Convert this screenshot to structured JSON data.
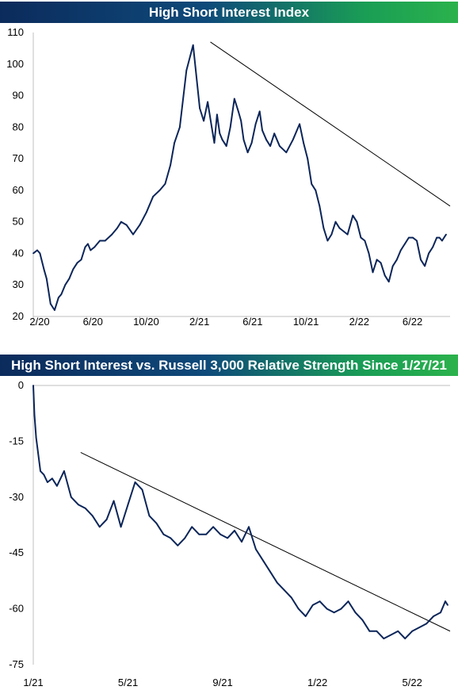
{
  "chart_data": [
    {
      "type": "line",
      "title": "High Short Interest Index",
      "xlabel": "",
      "ylabel": "",
      "ylim": [
        20,
        110
      ],
      "yticks": [
        "110",
        "100",
        "90",
        "80",
        "70",
        "60",
        "50",
        "40",
        "30",
        "20"
      ],
      "xticks": [
        "2/20",
        "6/20",
        "10/20",
        "2/21",
        "6/21",
        "10/21",
        "2/22",
        "6/22"
      ],
      "x_months_range": [
        0,
        31.3
      ],
      "line_color": "#0b2559",
      "series": [
        {
          "x": [
            0,
            0.3,
            0.5,
            0.8,
            1.0,
            1.3,
            1.6,
            1.9,
            2.1,
            2.4,
            2.7,
            3.0,
            3.3,
            3.6,
            3.9,
            4.1,
            4.3,
            4.6,
            5.0,
            5.4,
            5.9,
            6.3,
            6.6,
            7.0,
            7.5,
            8.0,
            8.5,
            9.0,
            9.5,
            9.9,
            10.3,
            10.6,
            11.0,
            11.5,
            12.0,
            12.5,
            12.8,
            13.1,
            13.4,
            13.6,
            13.8,
            14.0,
            14.2,
            14.5,
            14.8,
            15.1,
            15.4,
            15.6,
            15.8,
            16.1,
            16.4,
            16.7,
            17.0,
            17.2,
            17.5,
            17.8,
            18.1,
            18.5,
            19.0,
            19.5,
            20.0,
            20.3,
            20.6,
            20.9,
            21.2,
            21.5,
            21.8,
            22.1,
            22.4,
            22.7,
            23.0,
            23.3,
            23.6,
            24.0,
            24.3,
            24.6,
            24.9,
            25.2,
            25.5,
            25.8,
            26.1,
            26.4,
            26.7,
            27.0,
            27.3,
            27.6,
            27.9,
            28.2,
            28.5,
            28.8,
            29.1,
            29.4,
            29.7,
            30.0,
            30.3,
            30.5,
            30.7,
            31.0
          ],
          "values": [
            40,
            41,
            40,
            35,
            32,
            24,
            22,
            26,
            27,
            30,
            32,
            35,
            37,
            38,
            42,
            43,
            41,
            42,
            44,
            44,
            46,
            48,
            50,
            49,
            46,
            49,
            53,
            58,
            60,
            62,
            68,
            75,
            80,
            98,
            106,
            86,
            82,
            88,
            80,
            75,
            84,
            78,
            76,
            74,
            80,
            89,
            85,
            82,
            76,
            72,
            75,
            81,
            85,
            79,
            76,
            74,
            78,
            74,
            72,
            76,
            81,
            75,
            70,
            62,
            60,
            55,
            48,
            44,
            46,
            50,
            48,
            47,
            46,
            52,
            50,
            45,
            44,
            40,
            34,
            38,
            37,
            33,
            31,
            36,
            38,
            41,
            43,
            45,
            45,
            44,
            38,
            36,
            40,
            42,
            45,
            45,
            44,
            46
          ]
        }
      ],
      "trendline": {
        "x": [
          13.3,
          31.3
        ],
        "values": [
          107,
          55
        ]
      }
    },
    {
      "type": "line",
      "title": "High Short Interest vs. Russell 3,000 Relative Strength Since 1/27/21",
      "xlabel": "",
      "ylabel": "",
      "ylim": [
        -75,
        0
      ],
      "yticks": [
        "0",
        "-15",
        "-30",
        "-45",
        "-60",
        "-75"
      ],
      "xticks": [
        "1/21",
        "5/21",
        "9/21",
        "1/22",
        "5/22"
      ],
      "x_months_range": [
        0,
        17.6
      ],
      "line_color": "#0b2559",
      "series": [
        {
          "x": [
            0,
            0.05,
            0.12,
            0.2,
            0.3,
            0.45,
            0.6,
            0.8,
            1.0,
            1.3,
            1.6,
            1.9,
            2.2,
            2.5,
            2.8,
            3.1,
            3.4,
            3.7,
            4.0,
            4.3,
            4.6,
            4.9,
            5.2,
            5.5,
            5.8,
            6.1,
            6.4,
            6.7,
            7.0,
            7.3,
            7.6,
            7.9,
            8.2,
            8.5,
            8.8,
            9.1,
            9.4,
            9.7,
            10.0,
            10.3,
            10.6,
            10.9,
            11.2,
            11.5,
            11.8,
            12.1,
            12.4,
            12.7,
            13.0,
            13.3,
            13.6,
            13.9,
            14.2,
            14.5,
            14.8,
            15.1,
            15.4,
            15.7,
            16.0,
            16.3,
            16.6,
            16.9,
            17.2,
            17.4,
            17.5
          ],
          "values": [
            0,
            -8,
            -14,
            -18,
            -23,
            -24,
            -26,
            -25,
            -27,
            -23,
            -30,
            -32,
            -33,
            -35,
            -38,
            -36,
            -31,
            -38,
            -32,
            -26,
            -28,
            -35,
            -37,
            -40,
            -41,
            -43,
            -41,
            -38,
            -40,
            -40,
            -38,
            -40,
            -41,
            -39,
            -42,
            -38,
            -44,
            -47,
            -50,
            -53,
            -55,
            -57,
            -60,
            -62,
            -59,
            -58,
            -60,
            -61,
            -60,
            -58,
            -61,
            -63,
            -66,
            -66,
            -68,
            -67,
            -66,
            -68,
            -66,
            -65,
            -64,
            -62,
            -61,
            -58,
            -59
          ]
        }
      ],
      "trendline": {
        "x": [
          2.0,
          17.6
        ],
        "values": [
          -18,
          -66
        ]
      }
    }
  ]
}
